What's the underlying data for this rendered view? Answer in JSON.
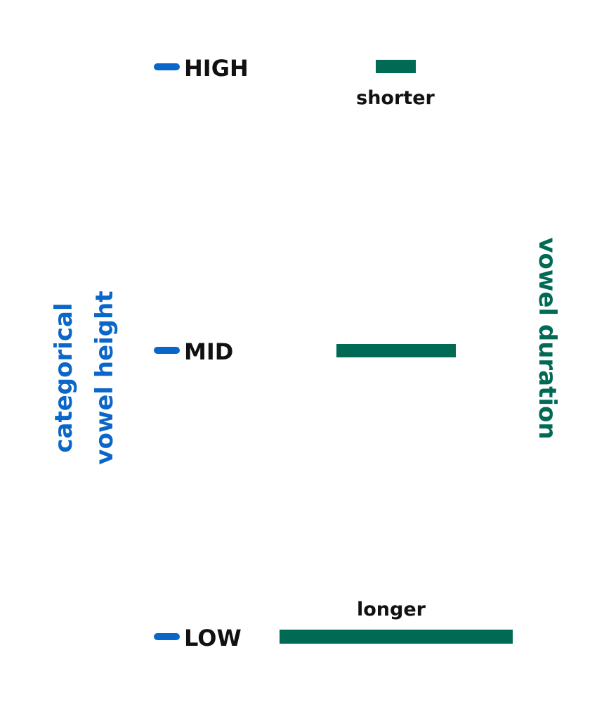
{
  "colors": {
    "height_blue": "#0a66c8",
    "duration_green": "#006a55",
    "label_black": "#111111"
  },
  "left_axis": {
    "title_line1": "categorical",
    "title_line2": "vowel height"
  },
  "right_axis": {
    "title": "vowel duration"
  },
  "levels": [
    {
      "label": "HIGH"
    },
    {
      "label": "MID"
    },
    {
      "label": "LOW"
    }
  ],
  "duration_labels": {
    "short": "shorter",
    "long": "longer"
  }
}
